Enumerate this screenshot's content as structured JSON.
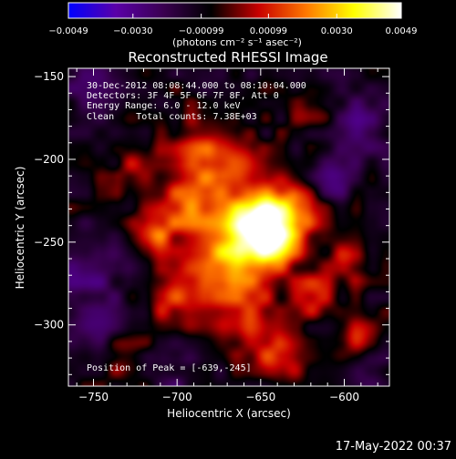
{
  "chart_data": {
    "type": "heatmap",
    "title": "Reconstructed RHESSI Image",
    "xlabel": "Heliocentric X (arcsec)",
    "ylabel": "Heliocentric Y (arcsec)",
    "xlim": [
      -765,
      -573
    ],
    "ylim": [
      -337,
      -145
    ],
    "x_ticks": [
      -750,
      -700,
      -650,
      -600
    ],
    "y_ticks": [
      -150,
      -200,
      -250,
      -300
    ],
    "colorbar": {
      "range": [
        -0.0049,
        0.0049
      ],
      "ticks": [
        -0.0049,
        -0.003,
        -0.00099,
        0.00099,
        0.003,
        0.0049
      ],
      "tick_labels": [
        "−0.0049",
        "−0.0030",
        "−0.00099",
        "0.00099",
        "0.0030",
        "0.0049"
      ],
      "unit_label": "(photons cm⁻² s⁻¹ asec⁻²)",
      "colors": [
        "#0000ff",
        "#5a00a8",
        "#3a0050",
        "#000000",
        "#c80000",
        "#ff7800",
        "#ffff00",
        "#ffffff"
      ]
    },
    "annotations": [
      "30-Dec-2012 08:08:44.000 to 08:10:04.000",
      "Detectors: 3F 4F 5F 6F 7F 8F, Att 0",
      "Energy Range: 6.0 - 12.0 keV",
      "Clean    Total counts: 7.38E+03"
    ],
    "peak_label": "Position of Peak = [-639,-245]",
    "peak": [
      -639,
      -245
    ],
    "sources": [
      {
        "x": -645,
        "y": -246,
        "intensity": 0.005,
        "sigma": 14
      },
      {
        "x": -655,
        "y": -236,
        "intensity": 0.003,
        "sigma": 12
      },
      {
        "x": -632,
        "y": -228,
        "intensity": 0.0026,
        "sigma": 11
      },
      {
        "x": -670,
        "y": -262,
        "intensity": 0.0028,
        "sigma": 15
      },
      {
        "x": -690,
        "y": -228,
        "intensity": 0.0026,
        "sigma": 16
      },
      {
        "x": -715,
        "y": -244,
        "intensity": 0.0022,
        "sigma": 9
      },
      {
        "x": -683,
        "y": -194,
        "intensity": 0.0022,
        "sigma": 13
      },
      {
        "x": -662,
        "y": -203,
        "intensity": 0.0021,
        "sigma": 10
      },
      {
        "x": -700,
        "y": -283,
        "intensity": 0.002,
        "sigma": 14
      },
      {
        "x": -660,
        "y": -297,
        "intensity": 0.0019,
        "sigma": 14
      },
      {
        "x": -640,
        "y": -320,
        "intensity": 0.0018,
        "sigma": 10
      },
      {
        "x": -618,
        "y": -282,
        "intensity": 0.0018,
        "sigma": 10
      },
      {
        "x": -598,
        "y": -262,
        "intensity": 0.0016,
        "sigma": 9
      },
      {
        "x": -592,
        "y": -307,
        "intensity": 0.0015,
        "sigma": 8
      },
      {
        "x": -725,
        "y": -205,
        "intensity": 0.0013,
        "sigma": 10
      },
      {
        "x": -732,
        "y": -318,
        "intensity": 0.0012,
        "sigma": 9
      },
      {
        "x": -620,
        "y": -170,
        "intensity": 0.0011,
        "sigma": 9
      },
      {
        "x": -755,
        "y": -155,
        "intensity": -0.0012,
        "sigma": 14
      },
      {
        "x": -755,
        "y": -270,
        "intensity": -0.0015,
        "sigma": 16
      },
      {
        "x": -590,
        "y": -180,
        "intensity": -0.0014,
        "sigma": 14
      },
      {
        "x": -608,
        "y": -210,
        "intensity": -0.0018,
        "sigma": 10
      },
      {
        "x": -745,
        "y": -300,
        "intensity": -0.0013,
        "sigma": 12
      },
      {
        "x": -585,
        "y": -330,
        "intensity": -0.0013,
        "sigma": 10
      },
      {
        "x": -700,
        "y": -330,
        "intensity": -0.0011,
        "sigma": 12
      }
    ]
  },
  "footer": {
    "timestamp": "17-May-2022 00:37"
  }
}
